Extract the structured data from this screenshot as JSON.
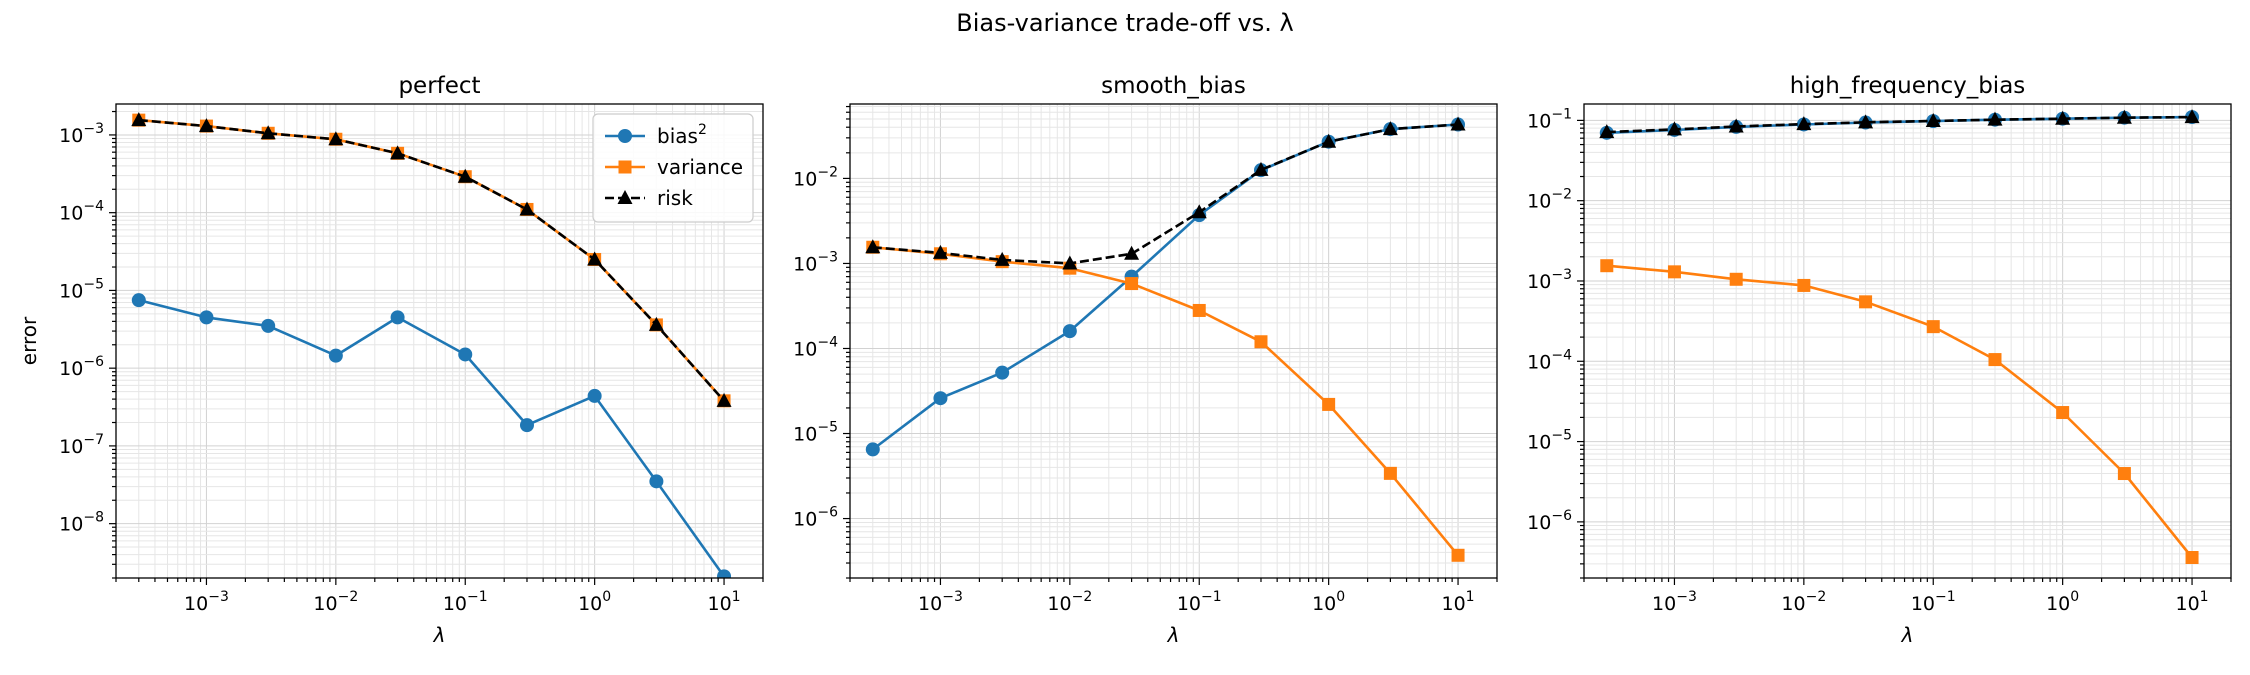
{
  "figure": {
    "suptitle": "Bias-variance trade-off vs. λ"
  },
  "chart_data": [
    {
      "type": "line",
      "title": "perfect",
      "xlabel": "λ",
      "ylabel": "error",
      "xscale": "log",
      "yscale": "log",
      "xlim": [
        0.0002,
        20
      ],
      "ylim": [
        2e-09,
        0.0025
      ],
      "xticks": [
        {
          "value": 0.001,
          "base": "10",
          "exp": "−3"
        },
        {
          "value": 0.01,
          "base": "10",
          "exp": "−2"
        },
        {
          "value": 0.1,
          "base": "10",
          "exp": "−1"
        },
        {
          "value": 1,
          "base": "10",
          "exp": "0"
        },
        {
          "value": 10,
          "base": "10",
          "exp": "1"
        }
      ],
      "yticks": [
        {
          "value": 1e-08,
          "base": "10",
          "exp": "−8"
        },
        {
          "value": 1e-07,
          "base": "10",
          "exp": "−7"
        },
        {
          "value": 1e-06,
          "base": "10",
          "exp": "−6"
        },
        {
          "value": 1e-05,
          "base": "10",
          "exp": "−5"
        },
        {
          "value": 0.0001,
          "base": "10",
          "exp": "−4"
        },
        {
          "value": 0.001,
          "base": "10",
          "exp": "−3"
        }
      ],
      "grid": true,
      "legend": {
        "location": "upper right",
        "entries": [
          {
            "text": "bias",
            "sup": "2"
          },
          {
            "text": "variance",
            "sup": ""
          },
          {
            "text": "risk",
            "sup": ""
          }
        ]
      },
      "x": [
        0.0003,
        0.001,
        0.003,
        0.01,
        0.03,
        0.1,
        0.3,
        1,
        3,
        10
      ],
      "series": [
        {
          "name": "bias²",
          "color": "#1f77b4",
          "marker": "circle",
          "linestyle": "solid",
          "values": [
            7.5e-06,
            4.5e-06,
            3.5e-06,
            1.45e-06,
            4.5e-06,
            1.5e-06,
            1.85e-07,
            4.4e-07,
            3.5e-08,
            2.1e-09
          ]
        },
        {
          "name": "variance",
          "color": "#ff7f0e",
          "marker": "square",
          "linestyle": "solid",
          "values": [
            0.00155,
            0.0013,
            0.00105,
            0.00088,
            0.00058,
            0.00029,
            0.00011,
            2.5e-05,
            3.6e-06,
            3.8e-07
          ]
        },
        {
          "name": "risk",
          "color": "#000000",
          "marker": "triangle",
          "linestyle": "dashed",
          "values": [
            0.00155,
            0.0013,
            0.00105,
            0.00088,
            0.00058,
            0.00029,
            0.00011,
            2.5e-05,
            3.6e-06,
            3.8e-07
          ]
        }
      ]
    },
    {
      "type": "line",
      "title": "smooth_bias",
      "xlabel": "λ",
      "ylabel": "",
      "xscale": "log",
      "yscale": "log",
      "xlim": [
        0.0002,
        20
      ],
      "ylim": [
        2e-07,
        0.075
      ],
      "xticks": [
        {
          "value": 0.001,
          "base": "10",
          "exp": "−3"
        },
        {
          "value": 0.01,
          "base": "10",
          "exp": "−2"
        },
        {
          "value": 0.1,
          "base": "10",
          "exp": "−1"
        },
        {
          "value": 1,
          "base": "10",
          "exp": "0"
        },
        {
          "value": 10,
          "base": "10",
          "exp": "1"
        }
      ],
      "yticks": [
        {
          "value": 1e-06,
          "base": "10",
          "exp": "−6"
        },
        {
          "value": 1e-05,
          "base": "10",
          "exp": "−5"
        },
        {
          "value": 0.0001,
          "base": "10",
          "exp": "−4"
        },
        {
          "value": 0.001,
          "base": "10",
          "exp": "−3"
        },
        {
          "value": 0.01,
          "base": "10",
          "exp": "−2"
        }
      ],
      "grid": true,
      "legend": null,
      "x": [
        0.0003,
        0.001,
        0.003,
        0.01,
        0.03,
        0.1,
        0.3,
        1,
        3,
        10
      ],
      "series": [
        {
          "name": "bias²",
          "color": "#1f77b4",
          "marker": "circle",
          "linestyle": "solid",
          "values": [
            6.5e-06,
            2.6e-05,
            5.2e-05,
            0.00016,
            0.0007,
            0.0037,
            0.0125,
            0.027,
            0.038,
            0.043
          ]
        },
        {
          "name": "variance",
          "color": "#ff7f0e",
          "marker": "square",
          "linestyle": "solid",
          "values": [
            0.00155,
            0.0013,
            0.00105,
            0.00088,
            0.00058,
            0.00028,
            0.00012,
            2.2e-05,
            3.4e-06,
            3.7e-07
          ]
        },
        {
          "name": "risk",
          "color": "#000000",
          "marker": "triangle",
          "linestyle": "dashed",
          "values": [
            0.00155,
            0.00133,
            0.0011,
            0.001,
            0.0013,
            0.004,
            0.0126,
            0.027,
            0.038,
            0.043
          ]
        }
      ]
    },
    {
      "type": "line",
      "title": "high_frequency_bias",
      "xlabel": "λ",
      "ylabel": "",
      "xscale": "log",
      "yscale": "log",
      "xlim": [
        0.0002,
        20
      ],
      "ylim": [
        2e-07,
        0.16
      ],
      "xticks": [
        {
          "value": 0.001,
          "base": "10",
          "exp": "−3"
        },
        {
          "value": 0.01,
          "base": "10",
          "exp": "−2"
        },
        {
          "value": 0.1,
          "base": "10",
          "exp": "−1"
        },
        {
          "value": 1,
          "base": "10",
          "exp": "0"
        },
        {
          "value": 10,
          "base": "10",
          "exp": "1"
        }
      ],
      "yticks": [
        {
          "value": 1e-06,
          "base": "10",
          "exp": "−6"
        },
        {
          "value": 1e-05,
          "base": "10",
          "exp": "−5"
        },
        {
          "value": 0.0001,
          "base": "10",
          "exp": "−4"
        },
        {
          "value": 0.001,
          "base": "10",
          "exp": "−3"
        },
        {
          "value": 0.01,
          "base": "10",
          "exp": "−2"
        },
        {
          "value": 0.1,
          "base": "10",
          "exp": "−1"
        }
      ],
      "grid": true,
      "legend": null,
      "x": [
        0.0003,
        0.001,
        0.003,
        0.01,
        0.03,
        0.1,
        0.3,
        1,
        3,
        10
      ],
      "series": [
        {
          "name": "bias²",
          "color": "#1f77b4",
          "marker": "circle",
          "linestyle": "solid",
          "values": [
            0.07,
            0.076,
            0.083,
            0.089,
            0.094,
            0.098,
            0.102,
            0.105,
            0.108,
            0.11
          ]
        },
        {
          "name": "variance",
          "color": "#ff7f0e",
          "marker": "square",
          "linestyle": "solid",
          "values": [
            0.00155,
            0.0013,
            0.00105,
            0.00088,
            0.00055,
            0.00027,
            0.000105,
            2.3e-05,
            4e-06,
            3.6e-07
          ]
        },
        {
          "name": "risk",
          "color": "#000000",
          "marker": "triangle",
          "linestyle": "dashed",
          "values": [
            0.0715,
            0.0773,
            0.084,
            0.0899,
            0.0946,
            0.0983,
            0.1021,
            0.105,
            0.108,
            0.11
          ]
        }
      ]
    }
  ]
}
